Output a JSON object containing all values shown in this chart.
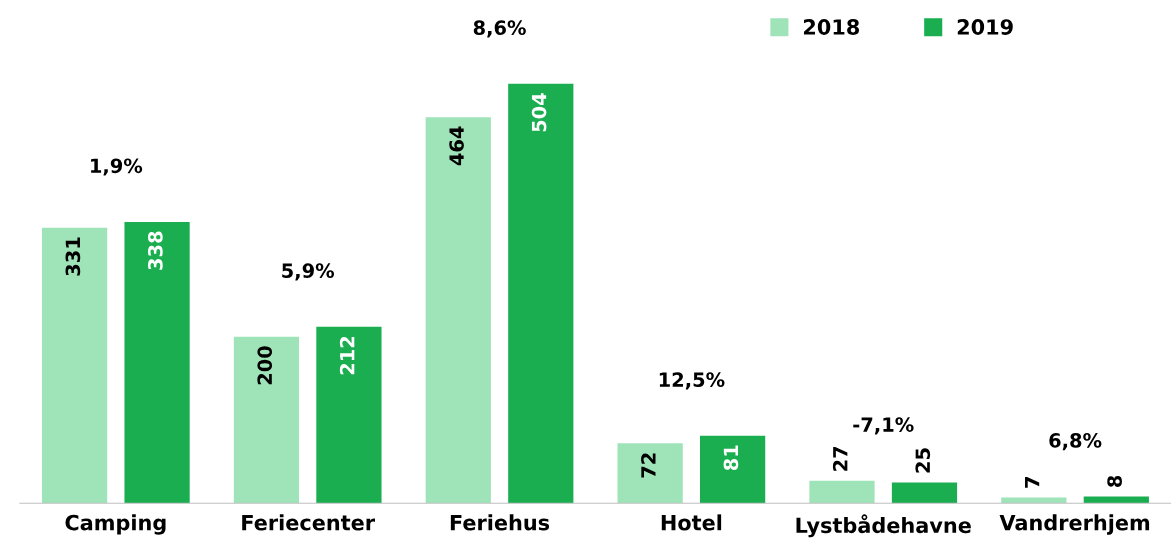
{
  "chart_data": {
    "type": "bar",
    "categories": [
      "Camping",
      "Feriecenter",
      "Feriehus",
      "Hotel",
      "Lystbådehavne",
      "Vandrerhjem"
    ],
    "series": [
      {
        "name": "2018",
        "color": "#9fe3b8",
        "values": [
          331,
          200,
          464,
          72,
          27,
          7
        ]
      },
      {
        "name": "2019",
        "color": "#1aae50",
        "values": [
          338,
          212,
          504,
          81,
          25,
          8
        ]
      }
    ],
    "data_labels": true,
    "legend": "top right",
    "grid": false,
    "annotations": [
      "1,9%",
      "5,9%",
      "8,6%",
      "12,5%",
      "-7,1%",
      "6,8%"
    ]
  }
}
